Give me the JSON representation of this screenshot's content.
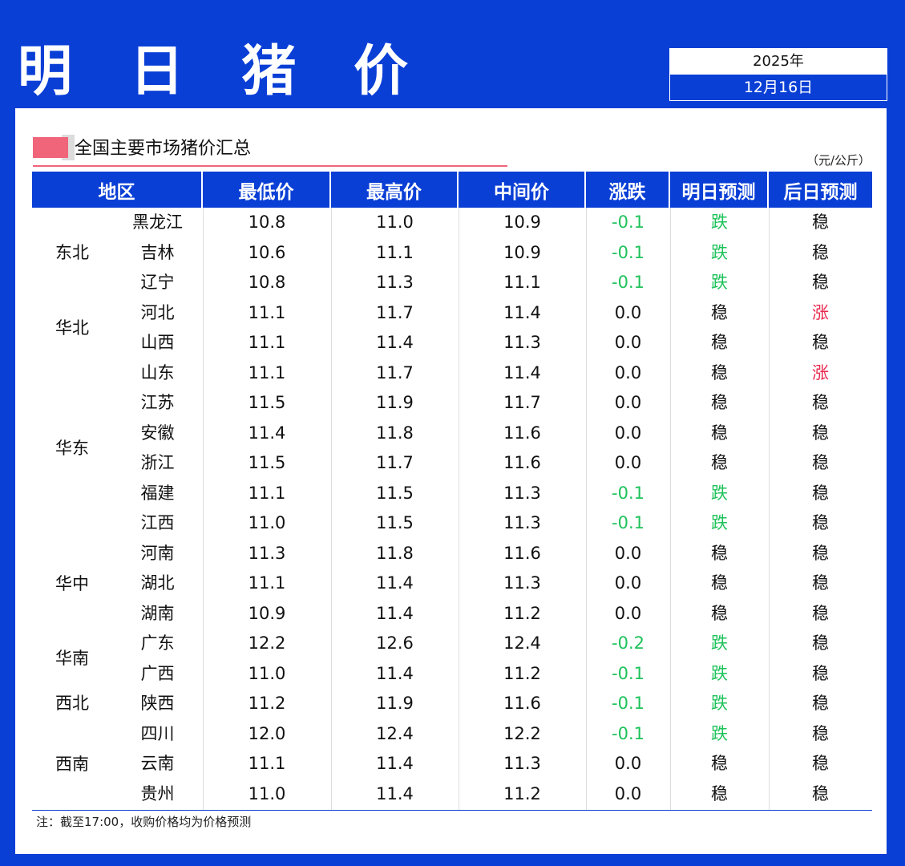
{
  "header": {
    "title": "明 日 猪 价",
    "year": "2025年",
    "date": "12月16日"
  },
  "section": {
    "title": "全国主要市场猪价汇总",
    "unit": "（元/公斤）"
  },
  "columns": [
    "地区",
    "最低价",
    "最高价",
    "中间价",
    "涨跌",
    "明日预测",
    "后日预测"
  ],
  "regions": [
    {
      "name": "东北",
      "start": 0,
      "count": 3
    },
    {
      "name": "华北",
      "start": 3,
      "count": 2
    },
    {
      "name": "华东",
      "start": 5,
      "count": 6
    },
    {
      "name": "华中",
      "start": 11,
      "count": 3
    },
    {
      "name": "华南",
      "start": 14,
      "count": 2
    },
    {
      "name": "西北",
      "start": 16,
      "count": 1
    },
    {
      "name": "西南",
      "start": 17,
      "count": 3
    }
  ],
  "rows": [
    {
      "province": "黑龙江",
      "low": "10.8",
      "high": "11.0",
      "mid": "10.9",
      "change": "-0.1",
      "tomorrow": "跌",
      "after": "稳"
    },
    {
      "province": "吉林",
      "low": "10.6",
      "high": "11.1",
      "mid": "10.9",
      "change": "-0.1",
      "tomorrow": "跌",
      "after": "稳"
    },
    {
      "province": "辽宁",
      "low": "10.8",
      "high": "11.3",
      "mid": "11.1",
      "change": "-0.1",
      "tomorrow": "跌",
      "after": "稳"
    },
    {
      "province": "河北",
      "low": "11.1",
      "high": "11.7",
      "mid": "11.4",
      "change": "0.0",
      "tomorrow": "稳",
      "after": "涨"
    },
    {
      "province": "山西",
      "low": "11.1",
      "high": "11.4",
      "mid": "11.3",
      "change": "0.0",
      "tomorrow": "稳",
      "after": "稳"
    },
    {
      "province": "山东",
      "low": "11.1",
      "high": "11.7",
      "mid": "11.4",
      "change": "0.0",
      "tomorrow": "稳",
      "after": "涨"
    },
    {
      "province": "江苏",
      "low": "11.5",
      "high": "11.9",
      "mid": "11.7",
      "change": "0.0",
      "tomorrow": "稳",
      "after": "稳"
    },
    {
      "province": "安徽",
      "low": "11.4",
      "high": "11.8",
      "mid": "11.6",
      "change": "0.0",
      "tomorrow": "稳",
      "after": "稳"
    },
    {
      "province": "浙江",
      "low": "11.5",
      "high": "11.7",
      "mid": "11.6",
      "change": "0.0",
      "tomorrow": "稳",
      "after": "稳"
    },
    {
      "province": "福建",
      "low": "11.1",
      "high": "11.5",
      "mid": "11.3",
      "change": "-0.1",
      "tomorrow": "跌",
      "after": "稳"
    },
    {
      "province": "江西",
      "low": "11.0",
      "high": "11.5",
      "mid": "11.3",
      "change": "-0.1",
      "tomorrow": "跌",
      "after": "稳"
    },
    {
      "province": "河南",
      "low": "11.3",
      "high": "11.8",
      "mid": "11.6",
      "change": "0.0",
      "tomorrow": "稳",
      "after": "稳"
    },
    {
      "province": "湖北",
      "low": "11.1",
      "high": "11.4",
      "mid": "11.3",
      "change": "0.0",
      "tomorrow": "稳",
      "after": "稳"
    },
    {
      "province": "湖南",
      "low": "10.9",
      "high": "11.4",
      "mid": "11.2",
      "change": "0.0",
      "tomorrow": "稳",
      "after": "稳"
    },
    {
      "province": "广东",
      "low": "12.2",
      "high": "12.6",
      "mid": "12.4",
      "change": "-0.2",
      "tomorrow": "跌",
      "after": "稳"
    },
    {
      "province": "广西",
      "low": "11.0",
      "high": "11.4",
      "mid": "11.2",
      "change": "-0.1",
      "tomorrow": "跌",
      "after": "稳"
    },
    {
      "province": "陕西",
      "low": "11.2",
      "high": "11.9",
      "mid": "11.6",
      "change": "-0.1",
      "tomorrow": "跌",
      "after": "稳"
    },
    {
      "province": "四川",
      "low": "12.0",
      "high": "12.4",
      "mid": "12.2",
      "change": "-0.1",
      "tomorrow": "跌",
      "after": "稳"
    },
    {
      "province": "云南",
      "low": "11.1",
      "high": "11.4",
      "mid": "11.3",
      "change": "0.0",
      "tomorrow": "稳",
      "after": "稳"
    },
    {
      "province": "贵州",
      "low": "11.0",
      "high": "11.4",
      "mid": "11.2",
      "change": "0.0",
      "tomorrow": "稳",
      "after": "稳"
    }
  ],
  "note": "注：截至17:00，收购价格均为价格预测",
  "colors": {
    "accent": "#0a3fd6",
    "down": "#1ec25a",
    "up": "#e8294e",
    "marker": "#f0657a"
  }
}
